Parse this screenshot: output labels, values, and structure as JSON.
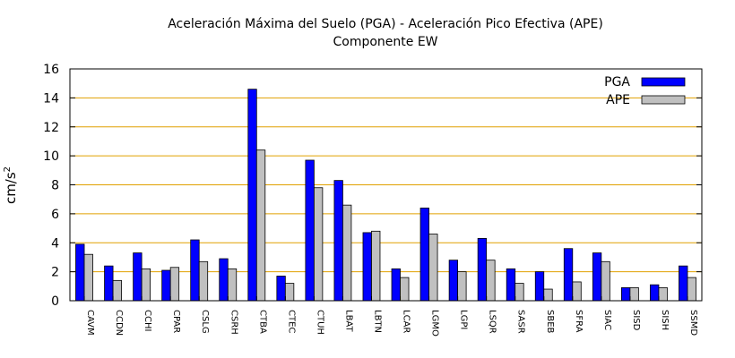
{
  "chart_data": {
    "type": "bar",
    "title_line1": "Aceleración Máxima del Suelo (PGA) -  Aceleración Pico Efectiva (APE)",
    "title_line2": "Componente EW",
    "ylabel": "cm/s",
    "ylabel_sup": "2",
    "xlabel": "",
    "ylim": [
      0,
      16
    ],
    "yticks": [
      "0",
      "2",
      "4",
      "6",
      "8",
      "10",
      "12",
      "14",
      "16"
    ],
    "grid": "horizontal",
    "legend_position": "top-right",
    "colors": {
      "PGA": "#0000ff",
      "APE": "#c0c0c0",
      "grid": "#e0a000"
    },
    "categories": [
      "CAVM",
      "CCDN",
      "CCHI",
      "CPAR",
      "CSLG",
      "CSRH",
      "CTBA",
      "CTEC",
      "CTUH",
      "LBAT",
      "LBTN",
      "LCAR",
      "LGMO",
      "LGPI",
      "LSQR",
      "SASR",
      "SBEB",
      "SFRA",
      "SIAC",
      "SISD",
      "SISH",
      "SSMD"
    ],
    "series": [
      {
        "name": "PGA",
        "values": [
          3.9,
          2.4,
          3.3,
          2.1,
          4.2,
          2.9,
          14.6,
          1.7,
          9.7,
          8.3,
          4.7,
          2.2,
          6.4,
          2.8,
          4.3,
          2.2,
          2.0,
          3.6,
          3.3,
          0.9,
          1.1,
          2.4
        ]
      },
      {
        "name": "APE",
        "values": [
          3.2,
          1.4,
          2.2,
          2.3,
          2.7,
          2.2,
          10.4,
          1.2,
          7.8,
          6.6,
          4.8,
          1.6,
          4.6,
          2.0,
          2.8,
          1.2,
          0.8,
          1.3,
          2.7,
          0.9,
          0.9,
          1.6
        ]
      }
    ]
  }
}
